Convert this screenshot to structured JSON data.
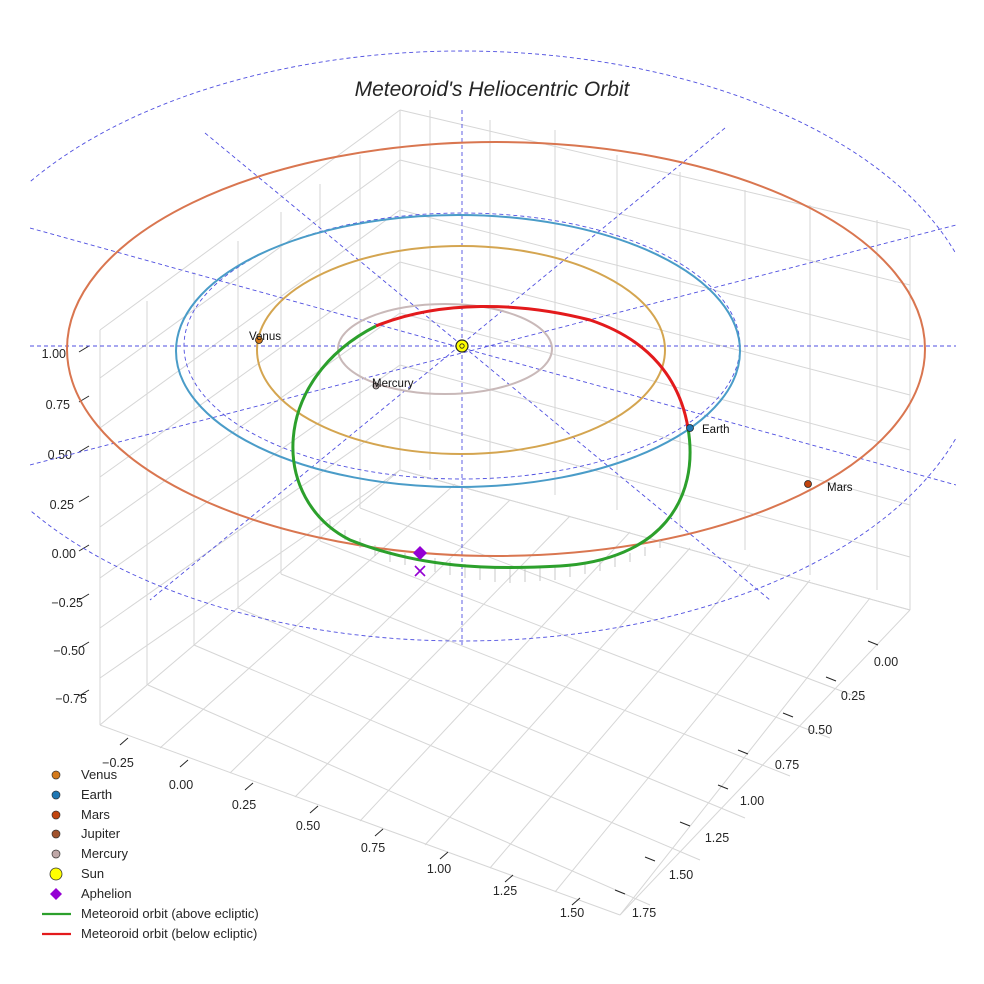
{
  "chart_data": {
    "type": "scatter",
    "projection": "3d",
    "title": "Meteoroid's Heliocentric Orbit",
    "axes": {
      "x_ticks": [
        "−0.25",
        "0.00",
        "0.25",
        "0.50",
        "0.75",
        "1.00",
        "1.25",
        "1.50"
      ],
      "y_ticks": [
        "0.00",
        "0.25",
        "0.50",
        "0.75",
        "1.00",
        "1.25",
        "1.50",
        "1.75"
      ],
      "z_ticks": [
        "1.00",
        "0.75",
        "0.50",
        "0.25",
        "0.00",
        "−0.25",
        "−0.50",
        "−0.75"
      ],
      "grid": true
    },
    "orbits": [
      {
        "name": "Mercury",
        "radius_au": 0.39,
        "color": "#c9b9b9"
      },
      {
        "name": "Venus",
        "radius_au": 0.72,
        "color": "#d4a550"
      },
      {
        "name": "Earth",
        "radius_au": 1.0,
        "color": "#4a9cc8"
      },
      {
        "name": "Mars",
        "radius_au": 1.52,
        "color": "#d97650"
      }
    ],
    "planets": [
      {
        "name": "Venus",
        "label": "Venus",
        "color": "#d4791a"
      },
      {
        "name": "Earth",
        "label": "Earth",
        "color": "#1f77b4"
      },
      {
        "name": "Mars",
        "label": "Mars",
        "color": "#c1440e"
      },
      {
        "name": "Mercury",
        "label": "Mercury",
        "color": "#b3a6a6"
      }
    ],
    "sun": {
      "color": "#ffff00"
    },
    "aphelion": {
      "color": "#9400d3"
    },
    "meteoroid_orbit": {
      "above_color": "#2ca02c",
      "below_color": "#e31a1c"
    },
    "legend": {
      "placement": "bottom-left",
      "entries": [
        {
          "label": "Venus",
          "marker": "circle",
          "color": "#d4791a"
        },
        {
          "label": "Earth",
          "marker": "circle",
          "color": "#1f77b4"
        },
        {
          "label": "Mars",
          "marker": "circle",
          "color": "#c1440e"
        },
        {
          "label": "Jupiter",
          "marker": "circle",
          "color": "#a0522d"
        },
        {
          "label": "Mercury",
          "marker": "circle",
          "color": "#bfa8a8"
        },
        {
          "label": "Sun",
          "marker": "circle-large",
          "color": "#ffff00"
        },
        {
          "label": "Aphelion",
          "marker": "diamond",
          "color": "#9400d3"
        },
        {
          "label": "Meteoroid orbit (above ecliptic)",
          "marker": "line",
          "color": "#2ca02c"
        },
        {
          "label": "Meteoroid orbit (below ecliptic)",
          "marker": "line",
          "color": "#e31a1c"
        }
      ]
    }
  }
}
